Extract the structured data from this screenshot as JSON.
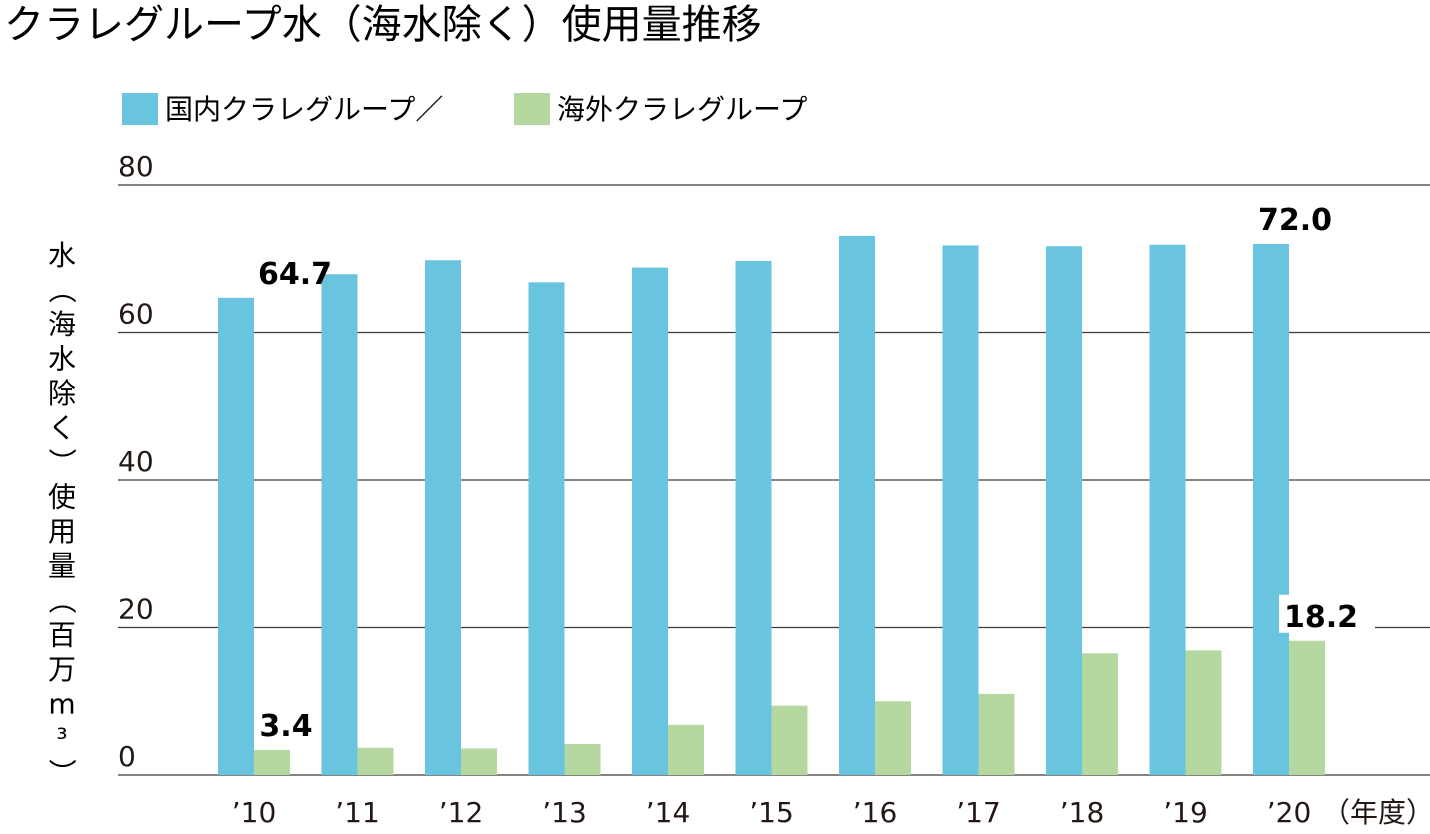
{
  "chart_data": {
    "type": "bar",
    "title": "クラレグループ水（海水除く）使用量推移",
    "ylabel": "水（海水除く）使用量（百万m³）",
    "xlabel": "（年度）",
    "ylim": [
      0,
      80
    ],
    "yticks": [
      0,
      20,
      40,
      60,
      80
    ],
    "grid": true,
    "legend_placement": "top-left",
    "categories": [
      "’10",
      "’11",
      "’12",
      "’13",
      "’14",
      "’15",
      "’16",
      "’17",
      "’18",
      "’19",
      "’20"
    ],
    "series": [
      {
        "name": "国内クラレグループ／",
        "color": "#68c4df",
        "values": [
          64.7,
          67.9,
          69.8,
          66.8,
          68.8,
          69.7,
          73.1,
          71.8,
          71.7,
          71.9,
          72.0
        ]
      },
      {
        "name": "海外クラレグループ",
        "color": "#b5d7a0",
        "values": [
          3.4,
          3.7,
          3.6,
          4.2,
          6.8,
          9.4,
          10.0,
          11.0,
          16.5,
          16.9,
          18.2
        ]
      }
    ],
    "annotations": [
      {
        "series": 0,
        "index": 0,
        "text": "64.7"
      },
      {
        "series": 0,
        "index": 10,
        "text": "72.0"
      },
      {
        "series": 1,
        "index": 0,
        "text": "3.4"
      },
      {
        "series": 1,
        "index": 10,
        "text": "18.2"
      }
    ]
  }
}
